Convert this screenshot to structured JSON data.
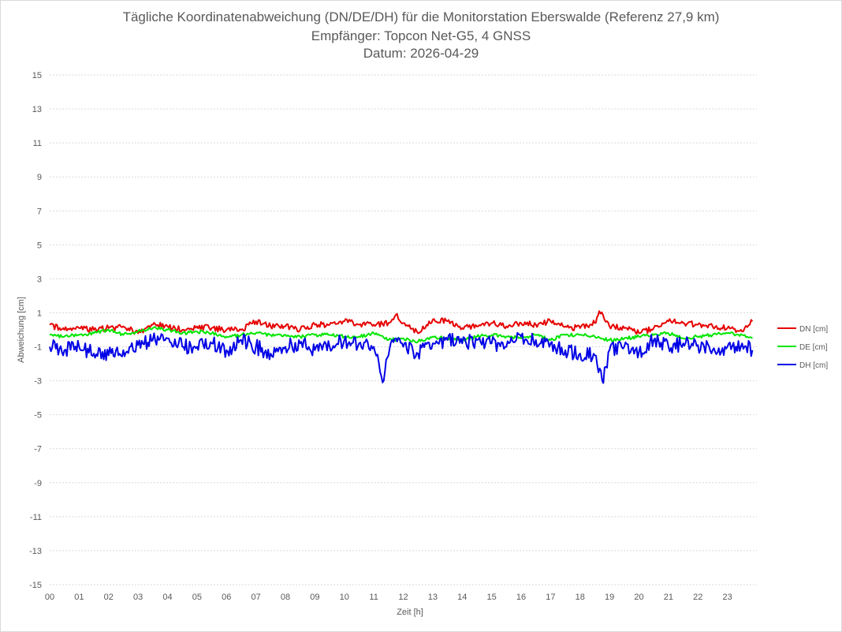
{
  "chart_data": {
    "type": "line",
    "title": "Tägliche Koordinatenabweichung (DN/DE/DH) für die Monitorstation Eberswalde (Referenz 27,9 km)",
    "subtitle": "Empfänger: Topcon Net-G5, 4 GNSS",
    "date_line": "Datum: 2026-04-29",
    "xlabel": "Zeit [h]",
    "ylabel": "Abweichung [cm]",
    "ylim": [
      -15,
      15
    ],
    "xlim": [
      0,
      24
    ],
    "yticks": [
      15,
      13,
      11,
      9,
      7,
      5,
      3,
      1,
      -1,
      -3,
      -5,
      -7,
      -9,
      -11,
      -13,
      -15
    ],
    "xticks": [
      "00",
      "01",
      "02",
      "03",
      "04",
      "05",
      "06",
      "07",
      "08",
      "09",
      "10",
      "11",
      "12",
      "13",
      "14",
      "15",
      "16",
      "17",
      "18",
      "19",
      "20",
      "21",
      "22",
      "23"
    ],
    "grid": true,
    "legend_position": "right",
    "series": [
      {
        "name": "DN [cm]",
        "color": "#e60000",
        "x": [
          0,
          0.5,
          1,
          1.5,
          2,
          2.5,
          3,
          3.5,
          4,
          4.5,
          5,
          5.5,
          6,
          6.5,
          7,
          7.5,
          8,
          8.5,
          9,
          9.5,
          10,
          10.5,
          11,
          11.5,
          11.75,
          12,
          12.5,
          13,
          13.5,
          14,
          14.5,
          15,
          15.5,
          16,
          16.5,
          17,
          17.5,
          18,
          18.5,
          18.65,
          19,
          19.5,
          20,
          20.5,
          21,
          21.5,
          22,
          22.5,
          23,
          23.5,
          23.85
        ],
        "y": [
          0.3,
          0.0,
          0.1,
          0.0,
          0.1,
          0.2,
          -0.2,
          0.3,
          0.2,
          0.0,
          0.2,
          0.1,
          0.0,
          0.0,
          0.5,
          0.2,
          0.2,
          0.0,
          0.3,
          0.3,
          0.5,
          0.3,
          0.3,
          0.4,
          0.9,
          0.4,
          -0.2,
          0.6,
          0.5,
          0.1,
          0.2,
          0.4,
          0.2,
          0.4,
          0.3,
          0.5,
          0.2,
          0.1,
          0.4,
          1.1,
          0.2,
          0.1,
          -0.2,
          0.1,
          0.5,
          0.4,
          0.3,
          0.2,
          0.1,
          -0.1,
          0.5
        ]
      },
      {
        "name": "DE [cm]",
        "color": "#00e600",
        "x": [
          0,
          0.5,
          1,
          1.5,
          2,
          2.5,
          3,
          3.5,
          4,
          4.5,
          5,
          5.5,
          6,
          6.5,
          7,
          7.5,
          8,
          8.5,
          9,
          9.5,
          10,
          10.5,
          11,
          11.5,
          12,
          12.5,
          13,
          13.5,
          14,
          14.5,
          15,
          15.5,
          16,
          16.5,
          17,
          17.5,
          18,
          18.5,
          19,
          19.5,
          20,
          20.5,
          21,
          21.5,
          22,
          22.5,
          23,
          23.5,
          23.85
        ],
        "y": [
          -0.3,
          -0.4,
          -0.3,
          -0.2,
          0.0,
          -0.3,
          -0.1,
          0.1,
          0.0,
          -0.2,
          -0.1,
          -0.2,
          -0.4,
          -0.3,
          -0.2,
          -0.3,
          -0.3,
          -0.4,
          -0.3,
          -0.3,
          -0.4,
          -0.4,
          -0.2,
          -0.6,
          -0.5,
          -0.7,
          -0.4,
          -0.5,
          -0.6,
          -0.4,
          -0.3,
          -0.4,
          -0.5,
          -0.3,
          -0.6,
          -0.3,
          -0.3,
          -0.4,
          -0.6,
          -0.5,
          -0.4,
          -0.3,
          -0.2,
          -0.5,
          -0.4,
          -0.3,
          -0.2,
          -0.3,
          -0.5
        ]
      },
      {
        "name": "DH [cm]",
        "color": "#0000e6",
        "x": [
          0,
          0.5,
          1,
          1.5,
          2,
          2.5,
          3,
          3.5,
          4,
          4.5,
          5,
          5.5,
          6,
          6.5,
          7,
          7.5,
          8,
          8.5,
          9,
          9.5,
          10,
          10.5,
          11,
          11.3,
          11.5,
          11.75,
          12,
          12.5,
          13,
          13.5,
          14,
          14.5,
          15,
          15.5,
          16,
          16.5,
          17,
          17.5,
          18,
          18.5,
          18.75,
          19,
          19.5,
          20,
          20.5,
          21,
          21.5,
          22,
          22.5,
          23,
          23.5,
          23.85
        ],
        "y": [
          -1.0,
          -1.2,
          -1.0,
          -1.4,
          -1.5,
          -1.2,
          -0.9,
          -0.6,
          -0.5,
          -1.0,
          -1.0,
          -0.8,
          -1.2,
          -0.6,
          -1.0,
          -1.4,
          -1.0,
          -0.8,
          -1.2,
          -1.0,
          -0.6,
          -0.8,
          -1.0,
          -3.1,
          -1.5,
          -0.5,
          -1.0,
          -1.4,
          -0.8,
          -0.6,
          -0.8,
          -0.6,
          -0.8,
          -1.0,
          -0.4,
          -0.6,
          -0.8,
          -1.2,
          -1.4,
          -1.5,
          -3.0,
          -1.2,
          -1.0,
          -1.3,
          -0.6,
          -1.0,
          -0.8,
          -0.9,
          -1.2,
          -1.0,
          -0.8,
          -1.2
        ]
      }
    ]
  }
}
